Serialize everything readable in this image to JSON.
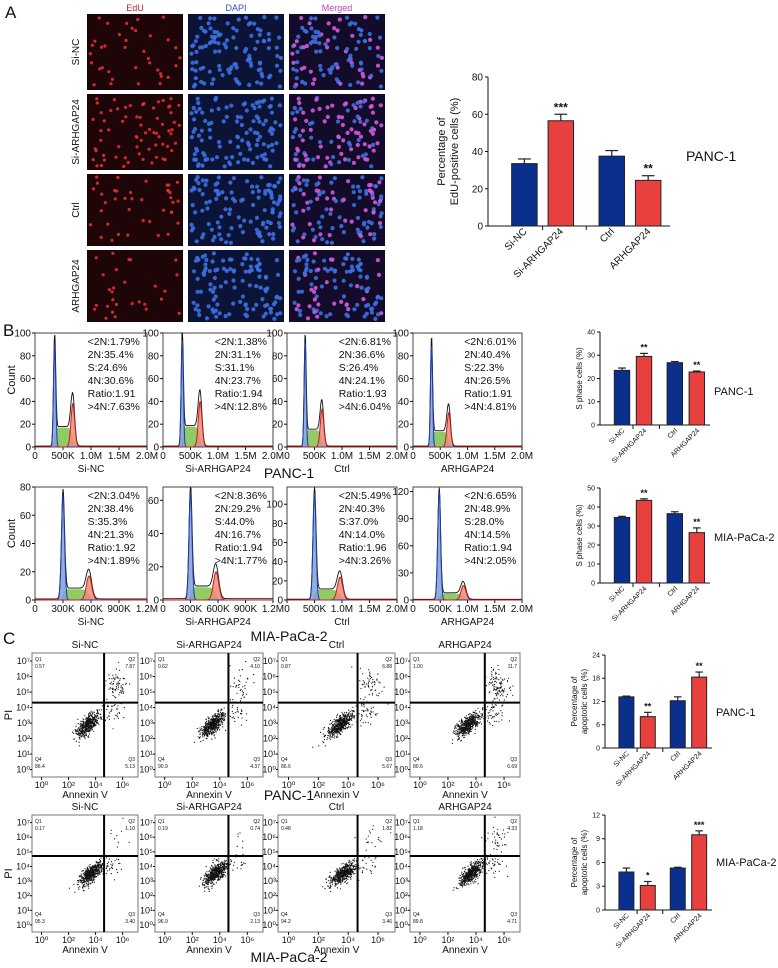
{
  "colors": {
    "blue": "#0b2f8c",
    "red": "#e8403f",
    "edu": "#c0202a",
    "dapi": "#2e4fc0",
    "merged": "#c040c0",
    "g1_fill": "#7fa0d8",
    "s_fill": "#7cc24a",
    "g2_fill": "#f08a78"
  },
  "panel_labels": [
    "A",
    "B",
    "C"
  ],
  "panel_a": {
    "channels": [
      "EdU",
      "DAPI",
      "Merged"
    ],
    "rows": [
      "Si-NC",
      "Si-ARHGAP24",
      "Ctrl",
      "ARHGAP24"
    ]
  },
  "panel_b": {
    "count_label": "Count",
    "groups": [
      {
        "cell_line": "PANC-1",
        "histograms": [
          {
            "name": "Si-NC",
            "ylim": [
              0,
              100
            ],
            "yticks": [
              0,
              20,
              40,
              60,
              80,
              100
            ],
            "xmax": 2000000,
            "xticks": [
              [
                0,
                "0"
              ],
              [
                500000,
                "500K"
              ],
              [
                1000000,
                "1.0M"
              ],
              [
                1500000,
                "1.5M"
              ],
              [
                2000000,
                "2.0M"
              ]
            ],
            "g1_position": 350000,
            "g1_peak_count": 90,
            "g2_peak_count": 38,
            "stats": [
              "<2N:1.79%",
              "2N:35.4%",
              "S:24.6%",
              "4N:30.6%",
              "Ratio:1.91",
              ">4N:7.63%"
            ]
          },
          {
            "name": "Si-ARHGAP24",
            "ylim": [
              0,
              100
            ],
            "yticks": [
              0,
              20,
              40,
              60,
              80,
              100
            ],
            "xmax": 2000000,
            "xticks": [
              [
                0,
                "0"
              ],
              [
                500000,
                "500K"
              ],
              [
                1000000,
                "1.0M"
              ],
              [
                1500000,
                "1.5M"
              ],
              [
                2000000,
                "2.0M"
              ]
            ],
            "g1_position": 350000,
            "g1_peak_count": 95,
            "g2_peak_count": 40,
            "stats": [
              "<2N:1.38%",
              "2N:31.1%",
              "S:31.1%",
              "4N:23.7%",
              "Ratio:1.94",
              ">4N:12.8%"
            ]
          },
          {
            "name": "Ctrl",
            "ylim": [
              0,
              100
            ],
            "yticks": [
              0,
              20,
              40,
              60,
              80,
              100
            ],
            "xmax": 2000000,
            "xticks": [
              [
                0,
                "0"
              ],
              [
                500000,
                "500K"
              ],
              [
                1000000,
                "1.0M"
              ],
              [
                1500000,
                "1.5M"
              ],
              [
                2000000,
                "2.0M"
              ]
            ],
            "g1_position": 330000,
            "g1_peak_count": 92,
            "g2_peak_count": 33,
            "stats": [
              "<2N:6.81%",
              "2N:36.6%",
              "S:26.4%",
              "4N:24.1%",
              "Ratio:1.93",
              ">4N:6.04%"
            ]
          },
          {
            "name": "ARHGAP24",
            "ylim": [
              0,
              100
            ],
            "yticks": [
              0,
              20,
              40,
              60,
              80,
              100
            ],
            "xmax": 2000000,
            "xticks": [
              [
                0,
                "0"
              ],
              [
                500000,
                "500K"
              ],
              [
                1000000,
                "1.0M"
              ],
              [
                1500000,
                "1.5M"
              ],
              [
                2000000,
                "2.0M"
              ]
            ],
            "g1_position": 340000,
            "g1_peak_count": 90,
            "g2_peak_count": 30,
            "stats": [
              "<2N:6.01%",
              "2N:40.4%",
              "S:22.3%",
              "4N:26.5%",
              "Ratio:1.91",
              ">4N:4.81%"
            ]
          }
        ]
      },
      {
        "cell_line": "MIA-PaCa-2",
        "histograms": [
          {
            "name": "Si-NC",
            "ylim": [
              0,
              80
            ],
            "yticks": [
              0,
              20,
              40,
              60,
              80
            ],
            "xmax": 1200000,
            "xticks": [
              [
                0,
                "0"
              ],
              [
                300000,
                "300K"
              ],
              [
                600000,
                "600K"
              ],
              [
                900000,
                "900K"
              ],
              [
                1200000,
                "1.2M"
              ]
            ],
            "g1_position": 300000,
            "g1_peak_count": 74,
            "g2_peak_count": 17,
            "stats": [
              "<2N:3.04%",
              "2N:38.4%",
              "S:35.3%",
              "4N:21.3%",
              "Ratio:1.92",
              ">4N:1.89%"
            ]
          },
          {
            "name": "Si-ARHGAP24",
            "ylim": [
              0,
              68
            ],
            "yticks": [
              0,
              20,
              40,
              60
            ],
            "xmax": 1200000,
            "xticks": [
              [
                0,
                "0"
              ],
              [
                300000,
                "300K"
              ],
              [
                600000,
                "600K"
              ],
              [
                900000,
                "900K"
              ],
              [
                1200000,
                "1.2M"
              ]
            ],
            "g1_position": 300000,
            "g1_peak_count": 65,
            "g2_peak_count": 17,
            "stats": [
              "<2N:8.36%",
              "2N:29.2%",
              "S:44.0%",
              "4N:16.7%",
              "Ratio:1.94",
              ">4N:1.77%"
            ]
          },
          {
            "name": "Ctrl",
            "ylim": [
              0,
              118
            ],
            "yticks": [
              0,
              20,
              40,
              60,
              80,
              100
            ],
            "xmax": 2000000,
            "xticks": [
              [
                0,
                "0"
              ],
              [
                500000,
                "500K"
              ],
              [
                1000000,
                "1.0M"
              ],
              [
                1500000,
                "1.5M"
              ],
              [
                2000000,
                "2.0M"
              ]
            ],
            "g1_position": 500000,
            "g1_peak_count": 112,
            "g2_peak_count": 24,
            "stats": [
              "<2N:5.49%",
              "2N:40.3%",
              "S:37.0%",
              "4N:14.0%",
              "Ratio:1.96",
              ">4N:3.26%"
            ]
          },
          {
            "name": "ARHGAP24",
            "ylim": [
              0,
              125
            ],
            "yticks": [
              0,
              30,
              60,
              90,
              120
            ],
            "xmax": 2000000,
            "xticks": [
              [
                0,
                "0"
              ],
              [
                500000,
                "500K"
              ],
              [
                1000000,
                "1.0M"
              ],
              [
                1500000,
                "1.5M"
              ],
              [
                2000000,
                "2.0M"
              ]
            ],
            "g1_position": 480000,
            "g1_peak_count": 120,
            "g2_peak_count": 16,
            "stats": [
              "<2N:6.65%",
              "2N:48.9%",
              "S:28.0%",
              "4N:14.5%",
              "Ratio:1.94",
              ">4N:2.05%"
            ]
          }
        ]
      }
    ]
  },
  "panel_c": {
    "x_label": "Annexin V",
    "y_label": "PI",
    "x_ticks": [
      "10⁰",
      "10²",
      "10⁴",
      "10⁶"
    ],
    "y_ticks": [
      "10⁰",
      "10¹",
      "10²",
      "10³",
      "10⁴",
      "10⁵",
      "10⁶",
      "10⁷"
    ],
    "groups": [
      {
        "cell_line": "PANC-1",
        "plots": [
          {
            "name": "Si-NC",
            "Q1": "0.57",
            "Q2": "7.87",
            "Q3": "5.13",
            "Q4": "86.4"
          },
          {
            "name": "Si-ARHGAP24",
            "Q1": "0.62",
            "Q2": "4.10",
            "Q3": "4.37",
            "Q4": "90.9"
          },
          {
            "name": "Ctrl",
            "Q1": "0.87",
            "Q2": "6.88",
            "Q3": "5.67",
            "Q4": "86.6"
          },
          {
            "name": "ARHGAP24",
            "Q1": "1.00",
            "Q2": "11.7",
            "Q3": "6.69",
            "Q4": "80.6"
          }
        ]
      },
      {
        "cell_line": "MIA-PaCa-2",
        "plots": [
          {
            "name": "Si-NC",
            "Q1": "0.17",
            "Q2": "1.10",
            "Q3": "3.40",
            "Q4": "95.3"
          },
          {
            "name": "Si-ARHGAP24",
            "Q1": "0.19",
            "Q2": "0.74",
            "Q3": "2.13",
            "Q4": "96.9"
          },
          {
            "name": "Ctrl",
            "Q1": "0.48",
            "Q2": "1.82",
            "Q3": "3.46",
            "Q4": "94.2"
          },
          {
            "name": "ARHGAP24",
            "Q1": "1.18",
            "Q2": "4.33",
            "Q3": "4.71",
            "Q4": "89.8"
          }
        ]
      }
    ]
  },
  "chart_data": [
    {
      "type": "bar",
      "panel": "A",
      "cell_line": "PANC-1",
      "categories": [
        "Si-NC",
        "Si-ARHGAP24",
        "Ctrl",
        "ARHGAP24"
      ],
      "values": [
        33.5,
        56.5,
        37.5,
        24.5
      ],
      "errors": [
        2.5,
        3.5,
        3.0,
        2.5
      ],
      "significance": [
        "",
        "***",
        "",
        "**"
      ],
      "ylabel": [
        "Percentage of",
        "EdU-positive cells (%)"
      ],
      "ylim": [
        0,
        80
      ],
      "yticks": [
        0,
        20,
        40,
        60,
        80
      ]
    },
    {
      "type": "bar",
      "panel": "B",
      "cell_line": "PANC-1",
      "categories": [
        "Si-NC",
        "Si-ARHGAP24",
        "Ctrl",
        "ARHGAP24"
      ],
      "values": [
        23.5,
        29.5,
        26.8,
        22.8
      ],
      "errors": [
        1.0,
        1.3,
        0.5,
        0.4
      ],
      "significance": [
        "",
        "**",
        "",
        "**"
      ],
      "ylabel": [
        "S phase cells (%)"
      ],
      "ylim": [
        0,
        40
      ],
      "yticks": [
        0,
        10,
        20,
        30,
        40
      ]
    },
    {
      "type": "bar",
      "panel": "B",
      "cell_line": "MIA-PaCa-2",
      "categories": [
        "Si-NC",
        "Si-ARHGAP24",
        "Ctrl",
        "ARHGAP24"
      ],
      "values": [
        34.5,
        43.5,
        36.5,
        26.5
      ],
      "errors": [
        0.6,
        0.8,
        1.0,
        2.5
      ],
      "significance": [
        "",
        "**",
        "",
        "**"
      ],
      "ylabel": [
        "S phase cells (%)"
      ],
      "ylim": [
        0,
        50
      ],
      "yticks": [
        0,
        10,
        20,
        30,
        40,
        50
      ]
    },
    {
      "type": "bar",
      "panel": "C",
      "cell_line": "PANC-1",
      "categories": [
        "Si-NC",
        "Si-ARHGAP24",
        "Ctrl",
        "ARHGAP24"
      ],
      "values": [
        13.2,
        8.1,
        12.2,
        18.3
      ],
      "errors": [
        0.2,
        1.1,
        1.0,
        1.3
      ],
      "significance": [
        "",
        "**",
        "",
        "**"
      ],
      "ylabel": [
        "Percentage of",
        "apoptotic cells (%)"
      ],
      "ylim": [
        0,
        24
      ],
      "yticks": [
        0,
        6,
        12,
        18,
        24
      ]
    },
    {
      "type": "bar",
      "panel": "C",
      "cell_line": "MIA-PaCa-2",
      "categories": [
        "Si-NC",
        "Si-ARHGAP24",
        "Ctrl",
        "ARHGAP24"
      ],
      "values": [
        4.8,
        3.1,
        5.3,
        9.5
      ],
      "errors": [
        0.5,
        0.5,
        0.1,
        0.5
      ],
      "significance": [
        "",
        "*",
        "",
        "***"
      ],
      "ylabel": [
        "Percentage of",
        "apoptotic cells (%)"
      ],
      "ylim": [
        0,
        12
      ],
      "yticks": [
        0,
        3,
        6,
        9,
        12
      ]
    }
  ]
}
